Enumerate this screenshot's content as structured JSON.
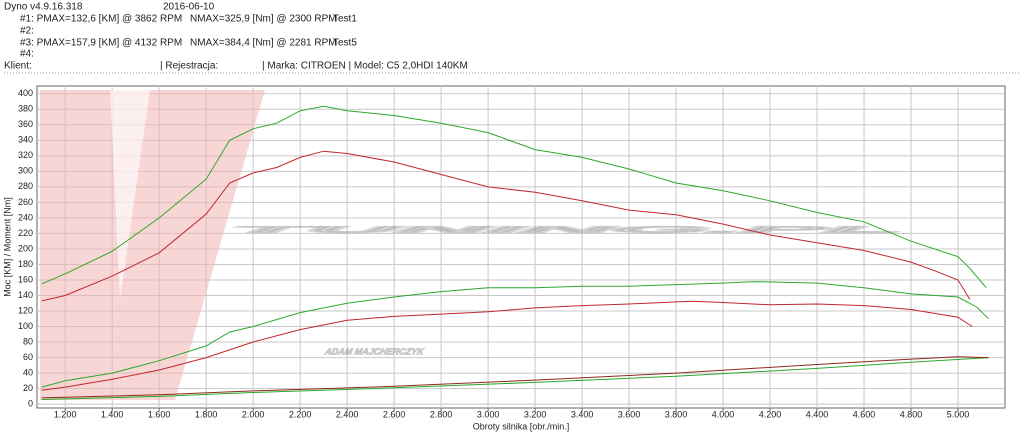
{
  "header": {
    "app": "Dyno v4.9.16.318",
    "date": "2016-06-10",
    "run1": "#1: PMAX=132,6 [KM] @ 3862 RPM",
    "run1_nmax": "NMAX=325,9 [Nm] @ 2300 RPM",
    "run1_name": "Test1",
    "run2": "#2:",
    "run3": "#3: PMAX=157,9 [KM] @ 4132 RPM",
    "run3_nmax": "NMAX=384,4 [Nm] @ 2281 RPM",
    "run3_name": "Test5",
    "run4": "#4:",
    "client": "Klient:",
    "registration": "| Rejestracja:",
    "vehicle": "| Marka: CITROEN | Model: C5 2,0HDI 140KM"
  },
  "chart_data": {
    "type": "line",
    "xlabel": "Obroty silnika [obr./min.]",
    "ylabel": "Moc [KM] / Moment [Nm]",
    "watermark": "TUNING.PL",
    "watermark_sub": "ADAM MAJCHERCZYK",
    "xlim": [
      1080,
      5200
    ],
    "ylim": [
      -5,
      410
    ],
    "grid": true,
    "xticks": [
      {
        "value": 1200,
        "label": "1.200"
      },
      {
        "value": 1400,
        "label": "1.400"
      },
      {
        "value": 1600,
        "label": "1.600"
      },
      {
        "value": 1800,
        "label": "1.800"
      },
      {
        "value": 2000,
        "label": "2.000"
      },
      {
        "value": 2200,
        "label": "2.200"
      },
      {
        "value": 2400,
        "label": "2.400"
      },
      {
        "value": 2600,
        "label": "2.600"
      },
      {
        "value": 2800,
        "label": "2.800"
      },
      {
        "value": 3000,
        "label": "3.000"
      },
      {
        "value": 3200,
        "label": "3.200"
      },
      {
        "value": 3400,
        "label": "3.400"
      },
      {
        "value": 3600,
        "label": "3.600"
      },
      {
        "value": 3800,
        "label": "3.800"
      },
      {
        "value": 4000,
        "label": "4.000"
      },
      {
        "value": 4200,
        "label": "4.200"
      },
      {
        "value": 4400,
        "label": "4.400"
      },
      {
        "value": 4600,
        "label": "4.600"
      },
      {
        "value": 4800,
        "label": "4.800"
      },
      {
        "value": 5000,
        "label": "5.000"
      }
    ],
    "yticks": [
      0,
      20,
      40,
      60,
      80,
      100,
      120,
      140,
      160,
      180,
      200,
      220,
      240,
      260,
      280,
      300,
      320,
      340,
      360,
      380,
      400
    ],
    "series": [
      {
        "color": "#2ca82c",
        "x": [
          1100,
          1200,
          1400,
          1600,
          1800,
          1900,
          2000,
          2100,
          2200,
          2300,
          2400,
          2600,
          2800,
          3000,
          3200,
          3400,
          3600,
          3800,
          4000,
          4200,
          4400,
          4600,
          4800,
          5000,
          5050,
          5120
        ],
        "values": [
          155,
          168,
          197,
          240,
          290,
          340,
          355,
          362,
          378,
          384,
          378,
          372,
          362,
          350,
          328,
          318,
          303,
          285,
          275,
          262,
          247,
          235,
          210,
          190,
          175,
          150
        ]
      },
      {
        "color": "#c0282a",
        "x": [
          1100,
          1200,
          1400,
          1600,
          1800,
          1900,
          2000,
          2100,
          2200,
          2300,
          2400,
          2600,
          2800,
          3000,
          3200,
          3400,
          3600,
          3800,
          4000,
          4200,
          4400,
          4600,
          4800,
          4900,
          5000,
          5050
        ],
        "values": [
          133,
          140,
          165,
          195,
          245,
          285,
          298,
          305,
          318,
          326,
          323,
          312,
          296,
          280,
          273,
          262,
          250,
          244,
          232,
          218,
          208,
          198,
          183,
          172,
          160,
          135
        ]
      },
      {
        "color": "#2ca82c",
        "x": [
          1100,
          1200,
          1400,
          1600,
          1800,
          1900,
          2000,
          2200,
          2400,
          2600,
          2800,
          3000,
          3200,
          3400,
          3600,
          3800,
          4000,
          4132,
          4400,
          4600,
          4800,
          5000,
          5080,
          5130
        ],
        "values": [
          22,
          30,
          40,
          56,
          75,
          93,
          100,
          118,
          130,
          138,
          145,
          150,
          150,
          152,
          152,
          154,
          156,
          157.9,
          156,
          150,
          142,
          138,
          125,
          110
        ]
      },
      {
        "color": "#c0282a",
        "x": [
          1100,
          1200,
          1400,
          1600,
          1800,
          2000,
          2200,
          2400,
          2600,
          2800,
          3000,
          3200,
          3400,
          3600,
          3862,
          4000,
          4200,
          4400,
          4600,
          4800,
          5000,
          5060
        ],
        "values": [
          18,
          22,
          32,
          44,
          60,
          80,
          96,
          108,
          113,
          116,
          119,
          124,
          127,
          129,
          132.6,
          131,
          128,
          129,
          127,
          122,
          112,
          100
        ]
      },
      {
        "color": "#2ca82c",
        "x": [
          1100,
          1600,
          2000,
          2600,
          3200,
          3800,
          4400,
          4800,
          5130
        ],
        "values": [
          6,
          10,
          15,
          21,
          28,
          36,
          46,
          54,
          60
        ]
      },
      {
        "color": "#8a2a1a",
        "x": [
          1100,
          1600,
          2000,
          2600,
          3200,
          3800,
          4400,
          4800,
          5000,
          5130
        ],
        "values": [
          8,
          12,
          17,
          23,
          31,
          40,
          51,
          58,
          61,
          60
        ]
      }
    ]
  }
}
